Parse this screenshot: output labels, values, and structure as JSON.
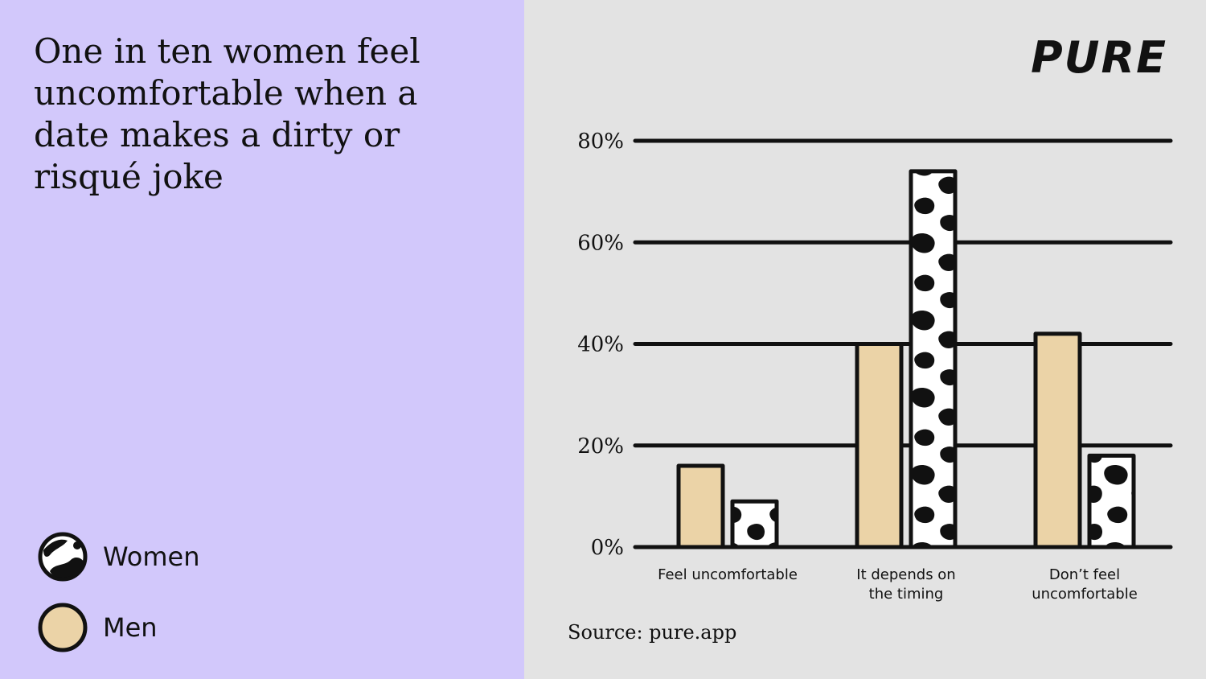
{
  "title": "One in ten women feel uncomfortable when a date makes a dirty or risqué joke",
  "logo": "PURE",
  "source": "Source: pure.app",
  "legend": [
    {
      "label": "Women",
      "pattern": "cow-spots"
    },
    {
      "label": "Men",
      "color": "#ebd3a7"
    }
  ],
  "colors": {
    "left_panel": "#d2c8fb",
    "right_panel": "#e3e3e3",
    "men_fill": "#ebd3a7",
    "women_fill": "#ffffff",
    "ink": "#111111"
  },
  "chart_data": {
    "type": "bar",
    "categories": [
      [
        "Feel uncomfortable"
      ],
      [
        "It depends on",
        "the timing"
      ],
      [
        "Don’t feel",
        "uncomfortable"
      ]
    ],
    "series": [
      {
        "name": "Men",
        "values": [
          16,
          40,
          42
        ]
      },
      {
        "name": "Women",
        "values": [
          9,
          74,
          18
        ]
      }
    ],
    "yticks": [
      "0%",
      "20%",
      "40%",
      "60%",
      "80%"
    ],
    "ylim": [
      0,
      80
    ],
    "grid": true,
    "legend_position": "bottom-left"
  }
}
